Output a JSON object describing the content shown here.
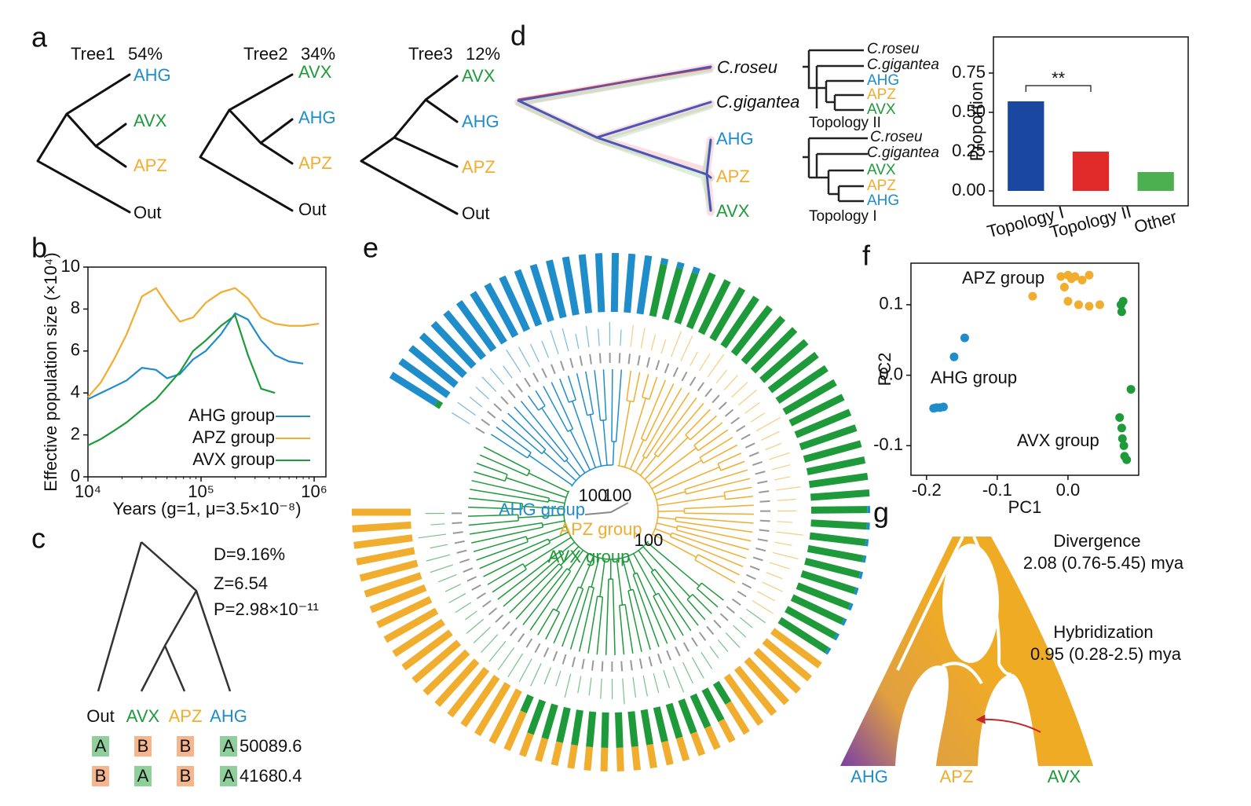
{
  "panels": {
    "a": {
      "letter": "a",
      "trees": [
        {
          "name": "Tree1",
          "percent": "54%",
          "tips": [
            "AHG",
            "AVX",
            "APZ",
            "Out"
          ]
        },
        {
          "name": "Tree2",
          "percent": "34%",
          "tips": [
            "AVX",
            "AHG",
            "APZ",
            "Out"
          ]
        },
        {
          "name": "Tree3",
          "percent": "12%",
          "tips": [
            "AVX",
            "AHG",
            "APZ",
            "Out"
          ]
        }
      ]
    },
    "b": {
      "letter": "b"
    },
    "c": {
      "letter": "c",
      "stats": [
        "D=9.16%",
        "Z=6.54",
        "P=2.98×10⁻¹¹"
      ],
      "tips": [
        "Out",
        "AVX",
        "APZ",
        "AHG"
      ],
      "colors": {
        "A": "#8fcf9c",
        "B": "#f5b58d"
      },
      "patterns": [
        {
          "sites": [
            "A",
            "B",
            "B",
            "A"
          ],
          "count": "50089.6"
        },
        {
          "sites": [
            "B",
            "A",
            "B",
            "A"
          ],
          "count": "41680.4"
        }
      ]
    },
    "d": {
      "letter": "d",
      "tips": [
        "C.roseu",
        "C.gigantea",
        "AHG",
        "APZ",
        "AVX"
      ],
      "topologies": [
        {
          "name": "Topology II",
          "tips": [
            "C.roseu",
            "C.gigantea",
            "AHG",
            "APZ",
            "AVX"
          ]
        },
        {
          "name": "Topology I",
          "tips": [
            "C.roseu",
            "C.gigantea",
            "AVX",
            "APZ",
            "AHG"
          ]
        }
      ]
    },
    "e": {
      "letter": "e",
      "groups": [
        "AHG group",
        "APZ group",
        "AVX group"
      ],
      "support": [
        "100",
        "100",
        "100"
      ],
      "colors": {
        "AVX": "#1e9a3b",
        "APZ": "#f0ad2e",
        "AHG": "#1f8dc9"
      },
      "ancestry": {
        "AVX": [
          0.1,
          0,
          0,
          0,
          0,
          0,
          0,
          0,
          0,
          0,
          0,
          0,
          0,
          0,
          0,
          0,
          0,
          0,
          0,
          0.9,
          0.9,
          0.9,
          1,
          1,
          1,
          1,
          1,
          1,
          1,
          1,
          1,
          1,
          1,
          1,
          1,
          1,
          1,
          1,
          1,
          1,
          0.95,
          0.95,
          0.95,
          0.95,
          0.95,
          0.95,
          0.95,
          0.95,
          0.95,
          0.95,
          0,
          0,
          0,
          0,
          0,
          0,
          0.4,
          0.6,
          0.6,
          0.6,
          0.6,
          0.6,
          0.6,
          0.6,
          0.6,
          0.6,
          0.6,
          0.6,
          0.6,
          0.6,
          0.6,
          0.3,
          0,
          0,
          0,
          0,
          0,
          0,
          0,
          0,
          0,
          0,
          0,
          0,
          0,
          0,
          0,
          0,
          0,
          0
        ],
        "APZ": [
          0,
          0,
          0,
          0,
          0,
          0,
          0,
          0,
          0,
          0,
          0,
          0,
          0,
          0,
          0,
          0,
          0,
          0,
          0,
          0,
          0,
          0,
          0,
          0,
          0,
          0,
          0,
          0,
          0,
          0,
          0,
          0,
          0,
          0,
          0,
          0,
          0,
          0,
          0,
          0,
          0,
          0,
          0,
          0,
          0,
          0,
          0,
          0,
          0,
          0,
          1,
          1,
          1,
          1,
          1,
          1,
          0.6,
          0.4,
          0.4,
          0.4,
          0.4,
          0.4,
          0.4,
          0.4,
          0.4,
          0.4,
          0.4,
          0.4,
          0.4,
          0.4,
          0.4,
          0.7,
          1,
          1,
          1,
          1,
          1,
          1,
          1,
          1,
          1,
          1,
          1,
          1,
          1,
          1,
          1,
          1,
          1,
          1
        ],
        "AHG": [
          0.9,
          1,
          1,
          1,
          1,
          1,
          1,
          1,
          1,
          1,
          1,
          1,
          1,
          1,
          1,
          1,
          1,
          1,
          1,
          0.1,
          0.1,
          0.1,
          0,
          0,
          0,
          0,
          0,
          0,
          0,
          0,
          0,
          0,
          0,
          0,
          0,
          0,
          0,
          0,
          0,
          0,
          0.05,
          0.05,
          0.05,
          0.05,
          0.05,
          0.05,
          0.05,
          0.05,
          0.05,
          0.05,
          0,
          0,
          0,
          0,
          0,
          0,
          0,
          0,
          0,
          0,
          0,
          0,
          0,
          0,
          0,
          0,
          0,
          0,
          0,
          0,
          0,
          0,
          0,
          0,
          0,
          0,
          0,
          0,
          0,
          0,
          0,
          0,
          0,
          0,
          0,
          0,
          0,
          0,
          0,
          0
        ]
      }
    },
    "f": {
      "letter": "f"
    },
    "g": {
      "letter": "g",
      "events": [
        {
          "name": "Divergence",
          "time": "2.08 (0.76-5.45) mya"
        },
        {
          "name": "Hybridization",
          "time": "0.95 (0.28-2.5) mya"
        }
      ],
      "tips": [
        "AHG",
        "APZ",
        "AVX"
      ]
    }
  },
  "chart_data": [
    {
      "type": "line",
      "xscale": "log",
      "xlabel": "Years (g=1, μ=3.5×10⁻⁸)",
      "ylabel": "Effective population size (×10⁴)",
      "x": [
        10000,
        13000,
        17000,
        22000,
        30000,
        40000,
        50000,
        65000,
        85000,
        110000,
        150000,
        200000,
        260000,
        340000,
        450000,
        600000,
        800000,
        1100000
      ],
      "xlim": [
        10000,
        1270000
      ],
      "xticks": [
        {
          "value": 10000,
          "label": "10⁴"
        },
        {
          "value": 100000,
          "label": "10⁵"
        },
        {
          "value": 1000000,
          "label": "10⁶"
        }
      ],
      "ylim": [
        0,
        10
      ],
      "yticks": [
        0,
        2,
        4,
        6,
        8,
        10
      ],
      "legend": "lower right",
      "series": [
        {
          "name": "AHG group",
          "color": "#1f8dc9",
          "values": [
            3.7,
            4.0,
            4.3,
            4.6,
            5.2,
            5.1,
            4.7,
            4.9,
            5.6,
            6.0,
            6.8,
            7.8,
            7.5,
            6.5,
            5.8,
            5.5,
            5.4,
            null
          ]
        },
        {
          "name": "APZ group",
          "color": "#f0ad2e",
          "values": [
            3.8,
            4.5,
            5.6,
            6.8,
            8.6,
            9.0,
            8.2,
            7.4,
            7.6,
            8.3,
            8.8,
            9.0,
            8.5,
            7.6,
            7.3,
            7.2,
            7.2,
            7.3
          ]
        },
        {
          "name": "AVX group",
          "color": "#1e9a3b",
          "values": [
            1.5,
            1.8,
            2.2,
            2.6,
            3.2,
            3.7,
            4.3,
            5.0,
            6.0,
            6.5,
            7.2,
            7.7,
            5.8,
            4.2,
            4.0,
            null,
            null,
            null
          ]
        }
      ]
    },
    {
      "type": "bar",
      "ylabel": "Proportion",
      "categories": [
        "Topology I",
        "Topology II",
        "Other"
      ],
      "values": [
        0.57,
        0.25,
        0.12
      ],
      "colors": [
        "#1a47a0",
        "#e02a2a",
        "#4caf50"
      ],
      "ylim": [
        -0.095,
        0.98
      ],
      "yticks": [
        {
          "value": 0,
          "label": "0.00"
        },
        0.25,
        {
          "value": 0.5,
          "label": "0.50"
        },
        0.75
      ],
      "annotations": [
        {
          "text": "**",
          "between": [
            0,
            1
          ]
        }
      ]
    },
    {
      "type": "scatter",
      "xlabel": "PC1",
      "ylabel": "PC2",
      "xlim": [
        -0.222,
        0.1
      ],
      "ylim": [
        -0.142,
        0.159
      ],
      "xticks": [
        -0.2,
        -0.1,
        {
          "value": 0,
          "label": "0.0"
        }
      ],
      "yticks": [
        -0.1,
        {
          "value": 0,
          "label": "0.0"
        },
        0.1
      ],
      "series": [
        {
          "name": "AHG group",
          "color": "#1f8dc9",
          "x": [
            -0.19,
            -0.186,
            -0.181,
            -0.176,
            -0.161,
            -0.146
          ],
          "values": [
            -0.047,
            -0.046,
            -0.046,
            -0.045,
            0.026,
            0.053
          ]
        },
        {
          "name": "APZ group",
          "color": "#f0ad2e",
          "x": [
            -0.05,
            -0.01,
            0,
            0.01,
            0.02,
            0.03,
            0.005,
            0.015,
            0,
            0.03,
            0.045,
            -0.005
          ],
          "values": [
            0.112,
            0.14,
            0.142,
            0.14,
            0.135,
            0.142,
            0.137,
            0.1,
            0.105,
            0.098,
            0.1,
            0.125
          ]
        },
        {
          "name": "AVX group",
          "color": "#1e9a3b",
          "x": [
            0.075,
            0.078,
            0.076,
            0.089,
            0.073,
            0.076,
            0.077,
            0.079,
            0.08,
            0.083
          ],
          "values": [
            0.1,
            0.105,
            0.09,
            -0.02,
            -0.06,
            -0.075,
            -0.09,
            -0.1,
            -0.115,
            -0.12
          ]
        }
      ]
    }
  ]
}
